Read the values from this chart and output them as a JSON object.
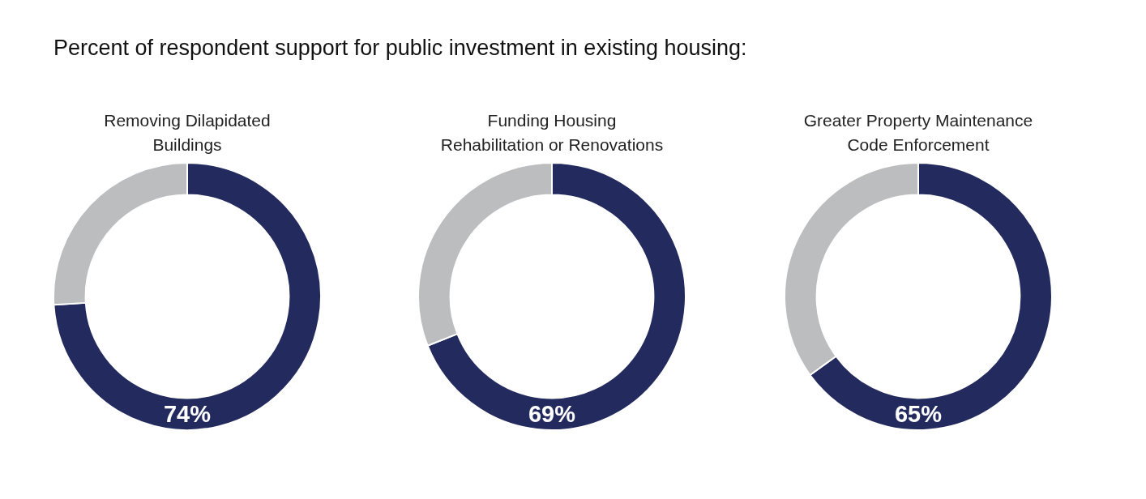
{
  "chart_data": [
    {
      "type": "donut",
      "title": "Percent of respondent support for public investment in existing housing:",
      "subtitle": "Removing Dilapidated Buildings",
      "categories": [
        null,
        null
      ],
      "values": [
        74,
        26
      ],
      "colors": [
        "#222a5e",
        "#bcbdbe"
      ],
      "value_labels": [
        "74%",
        null
      ]
    },
    {
      "type": "donut",
      "subtitle": "Funding Housing Rehabilitation or Renovations",
      "categories": [
        null,
        null
      ],
      "values": [
        69,
        31
      ],
      "colors": [
        "#222a5e",
        "#bcbdbe"
      ],
      "value_labels": [
        "69%",
        null
      ]
    },
    {
      "type": "donut",
      "subtitle": "Greater Property Maintenance Code Enforcement",
      "categories": [
        null,
        null
      ],
      "values": [
        65,
        35
      ],
      "colors": [
        "#222a5e",
        "#bcbdbe"
      ],
      "value_labels": [
        "65%",
        null
      ]
    }
  ]
}
